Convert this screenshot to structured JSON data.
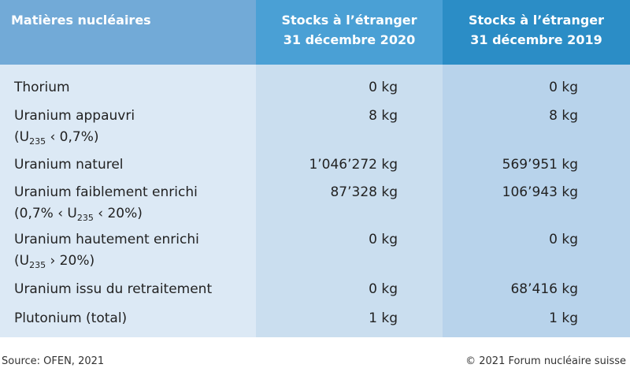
{
  "header": {
    "material": "Matières nucléaires",
    "col_2020": [
      "Stocks à l’étranger",
      "31 décembre 2020"
    ],
    "col_2019": [
      "Stocks à l’étranger",
      "31 décembre 2019"
    ]
  },
  "table": {
    "rows": [
      {
        "material": "Thorium",
        "stock_2020": "0 kg",
        "stock_2019": "0 kg"
      },
      {
        "material": "Uranium appauvri",
        "note": {
          "before": "(U",
          "sub": "235",
          "after": " ‹ 0,7%)"
        },
        "stock_2020": "8 kg",
        "stock_2019": "8 kg"
      },
      {
        "material": "Uranium naturel",
        "stock_2020": "1’046’272 kg",
        "stock_2019": "569’951 kg"
      },
      {
        "material": "Uranium faiblement enrichi",
        "note": {
          "before": "(0,7% ‹ U",
          "sub": "235",
          "after": " ‹ 20%)"
        },
        "stock_2020": "87’328 kg",
        "stock_2019": "106’943 kg"
      },
      {
        "material": "Uranium hautement enrichi",
        "note": {
          "before": "(U",
          "sub": "235",
          "after": " › 20%)"
        },
        "stock_2020": "0 kg",
        "stock_2019": "0 kg"
      },
      {
        "material": "Uranium issu du retraitement",
        "stock_2020": "0 kg",
        "stock_2019": "68’416 kg"
      },
      {
        "material": "Plutonium (total)",
        "stock_2020": "1 kg",
        "stock_2019": "1 kg"
      }
    ]
  },
  "footer": {
    "source": "Source: OFEN, 2021",
    "copyright": "© 2021 Forum nucléaire suisse"
  }
}
